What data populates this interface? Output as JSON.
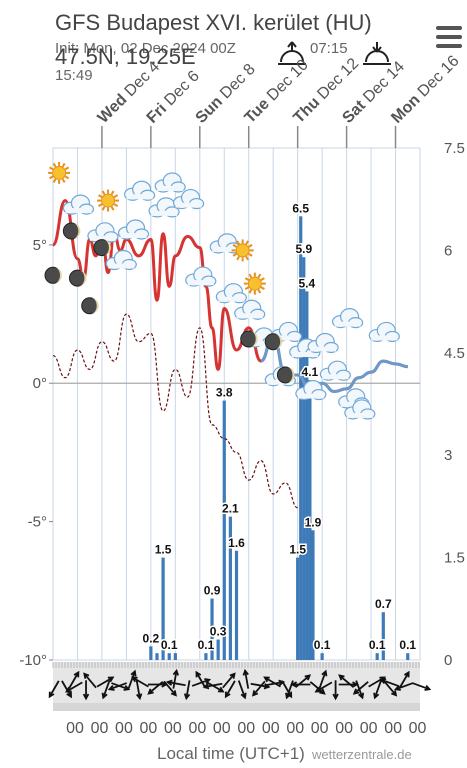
{
  "header": {
    "title": "GFS Budapest XVI. kerület (HU)",
    "coords": "47.5N, 19.25E",
    "init": "Init: Mon, 02 Dec 2024 00Z",
    "sunrise": "07:15",
    "sunset": "15:49"
  },
  "footer": {
    "xlabel": "Local time (UTC+1)",
    "credit": "wetterzentrale.de",
    "hour_label": "00"
  },
  "colors": {
    "temp": "#d63333",
    "temp_low": "#55aee6",
    "dewpoint": "#6b1010",
    "precip": "#3d7ab8",
    "grid": "#c7d6e6"
  },
  "chart_data": {
    "type": "line",
    "x_unit": "date",
    "date_ticks": [
      {
        "day": "Wed",
        "date": "Dec 4",
        "bold": "Wed",
        "rest": " Dec 4"
      },
      {
        "day": "Fri",
        "date": "Dec 6",
        "bold": "Fri",
        "rest": " Dec 6"
      },
      {
        "day": "Sun",
        "date": "Dec 8",
        "bold": "Sun",
        "rest": " Dec 8"
      },
      {
        "day": "Tue",
        "date": "Dec 10",
        "bold": "Tue",
        "rest": " Dec 10"
      },
      {
        "day": "Thu",
        "date": "Dec 12",
        "bold": "Thu",
        "rest": " Dec 12"
      },
      {
        "day": "Sat",
        "date": "Dec 14",
        "bold": "Sat",
        "rest": " Dec 14"
      },
      {
        "day": "Mon",
        "date": "Dec 16",
        "bold": "Mon",
        "rest": " Dec 16"
      }
    ],
    "y_left": {
      "range": [
        -10,
        8.5
      ],
      "ticks": [
        {
          "v": 5,
          "label": "5°"
        },
        {
          "v": 0,
          "label": "0°"
        },
        {
          "v": -5,
          "label": "-5°"
        },
        {
          "v": -10,
          "label": "-10°"
        }
      ]
    },
    "y_right": {
      "range": [
        0,
        7.5
      ],
      "ticks": [
        {
          "v": 7.5,
          "label": "7.5"
        },
        {
          "v": 6,
          "label": "6"
        },
        {
          "v": 4.5,
          "label": "4.5"
        },
        {
          "v": 3,
          "label": "3"
        },
        {
          "v": 1.5,
          "label": "1.5"
        },
        {
          "v": 0,
          "label": "0"
        }
      ]
    },
    "series": [
      {
        "key": "temperature",
        "x": [
          "2024-12-02T00",
          "2024-12-02T12",
          "2024-12-03T00",
          "2024-12-03T06",
          "2024-12-03T12",
          "2024-12-03T18",
          "2024-12-04T00",
          "2024-12-04T06",
          "2024-12-04T12",
          "2024-12-04T18",
          "2024-12-05T00",
          "2024-12-05T12",
          "2024-12-06T00",
          "2024-12-06T06",
          "2024-12-06T12",
          "2024-12-06T18",
          "2024-12-07T00",
          "2024-12-07T12",
          "2024-12-08T00",
          "2024-12-08T06",
          "2024-12-08T12",
          "2024-12-08T18",
          "2024-12-09T00",
          "2024-12-09T12",
          "2024-12-10T00",
          "2024-12-10T12",
          "2024-12-11T00",
          "2024-12-11T12",
          "2024-12-12T00",
          "2024-12-12T12",
          "2024-12-13T00",
          "2024-12-13T12",
          "2024-12-14T00",
          "2024-12-14T12",
          "2024-12-15T00",
          "2024-12-15T12",
          "2024-12-16T00",
          "2024-12-16T12"
        ],
        "y": [
          5.0,
          6.6,
          4.5,
          3.8,
          5.2,
          4.6,
          5.5,
          4.0,
          5.4,
          4.8,
          5.2,
          4.6,
          5.2,
          3.0,
          5.4,
          3.5,
          4.6,
          5.3,
          4.9,
          3.5,
          2.0,
          0.5,
          2.7,
          1.2,
          2.0,
          0.8,
          1.7,
          0.3,
          0.3,
          -0.2,
          0.0,
          -0.3,
          -0.2,
          0.2,
          0.4,
          0.8,
          0.7,
          0.6
        ]
      },
      {
        "key": "dewpoint",
        "x": [
          "2024-12-02T00",
          "2024-12-02T12",
          "2024-12-03T00",
          "2024-12-03T12",
          "2024-12-04T00",
          "2024-12-04T12",
          "2024-12-05T00",
          "2024-12-05T12",
          "2024-12-06T00",
          "2024-12-06T12",
          "2024-12-07T00",
          "2024-12-07T12",
          "2024-12-08T00",
          "2024-12-08T12",
          "2024-12-09T00",
          "2024-12-09T12",
          "2024-12-10T00",
          "2024-12-10T12",
          "2024-12-11T00",
          "2024-12-11T12",
          "2024-12-12T00"
        ],
        "y": [
          1.0,
          0.2,
          1.2,
          0.5,
          1.5,
          0.8,
          2.5,
          1.5,
          1.8,
          -1.0,
          0.5,
          -0.5,
          2.0,
          -1.5,
          -2.0,
          -2.5,
          -3.5,
          -2.8,
          -4.0,
          -3.6,
          -4.5
        ]
      },
      {
        "key": "precipitation",
        "x": [
          "2024-12-06T00",
          "2024-12-06T06",
          "2024-12-06T12",
          "2024-12-06T18",
          "2024-12-07T00",
          "2024-12-08T06",
          "2024-12-08T12",
          "2024-12-08T18",
          "2024-12-09T00",
          "2024-12-09T06",
          "2024-12-09T12",
          "2024-12-12T00",
          "2024-12-12T03",
          "2024-12-12T06",
          "2024-12-12T09",
          "2024-12-12T12",
          "2024-12-12T15",
          "2024-12-13T00",
          "2024-12-15T06",
          "2024-12-15T12",
          "2024-12-16T12"
        ],
        "y": [
          0.2,
          0.1,
          1.5,
          0.1,
          0.1,
          0.1,
          0.9,
          0.3,
          3.8,
          2.1,
          1.6,
          1.5,
          6.5,
          5.9,
          5.4,
          4.1,
          1.9,
          0.1,
          0.1,
          0.7,
          0.1
        ]
      }
    ],
    "precip_labels": [
      {
        "x": "2024-12-06T00",
        "v": "0.2"
      },
      {
        "x": "2024-12-06T12",
        "v": "1.5"
      },
      {
        "x": "2024-12-06T18",
        "v": "0.1"
      },
      {
        "x": "2024-12-08T06",
        "v": "0.1"
      },
      {
        "x": "2024-12-08T12",
        "v": "0.9"
      },
      {
        "x": "2024-12-08T18",
        "v": "0.3"
      },
      {
        "x": "2024-12-09T00",
        "v": "3.8"
      },
      {
        "x": "2024-12-09T06",
        "v": "2.1"
      },
      {
        "x": "2024-12-09T12",
        "v": "1.6"
      },
      {
        "x": "2024-12-12T00",
        "v": "1.5"
      },
      {
        "x": "2024-12-12T03",
        "v": "6.5"
      },
      {
        "x": "2024-12-12T06",
        "v": "5.9"
      },
      {
        "x": "2024-12-12T09",
        "v": "5.4"
      },
      {
        "x": "2024-12-12T12",
        "v": "4.1"
      },
      {
        "x": "2024-12-12T15",
        "v": "1.9"
      },
      {
        "x": "2024-12-13T00",
        "v": "0.1"
      },
      {
        "x": "2024-12-15T06",
        "v": "0.1"
      },
      {
        "x": "2024-12-15T12",
        "v": "0.7"
      },
      {
        "x": "2024-12-16T12",
        "v": "0.1"
      }
    ],
    "weather_icons": [
      {
        "x": "2024-12-02T06",
        "t": 7.6,
        "icon": "sun-icon"
      },
      {
        "x": "2024-12-03T00",
        "t": 6.4,
        "icon": "cloud-icon"
      },
      {
        "x": "2024-12-04T06",
        "t": 6.6,
        "icon": "sun-icon"
      },
      {
        "x": "2024-12-05T12",
        "t": 6.9,
        "icon": "cloud-icon"
      },
      {
        "x": "2024-12-06T12",
        "t": 6.3,
        "icon": "cloud-icon"
      },
      {
        "x": "2024-12-06T18",
        "t": 7.2,
        "icon": "cloud-icon"
      },
      {
        "x": "2024-12-07T12",
        "t": 6.6,
        "icon": "cloud-icon"
      },
      {
        "x": "2024-12-04T00",
        "t": 5.4,
        "icon": "cloud-icon"
      },
      {
        "x": "2024-12-04T18",
        "t": 4.4,
        "icon": "cloud-icon"
      },
      {
        "x": "2024-12-05T06",
        "t": 5.5,
        "icon": "cloud-icon"
      },
      {
        "x": "2024-12-09T00",
        "t": 5.0,
        "icon": "cloud-icon"
      },
      {
        "x": "2024-12-09T18",
        "t": 4.8,
        "icon": "sun-icon"
      },
      {
        "x": "2024-12-10T06",
        "t": 3.6,
        "icon": "sun-icon"
      },
      {
        "x": "2024-12-08T00",
        "t": 3.8,
        "icon": "cloud-icon"
      },
      {
        "x": "2024-12-09T06",
        "t": 3.2,
        "icon": "cloud-icon"
      },
      {
        "x": "2024-12-10T00",
        "t": 2.6,
        "icon": "cloud-icon"
      },
      {
        "x": "2024-12-10T12",
        "t": 1.6,
        "icon": "cloud-icon"
      },
      {
        "x": "2024-12-11T12",
        "t": 1.8,
        "icon": "cloud-icon"
      },
      {
        "x": "2024-12-12T06",
        "t": 1.2,
        "icon": "cloud-icon"
      },
      {
        "x": "2024-12-13T00",
        "t": 1.4,
        "icon": "cloud-icon"
      },
      {
        "x": "2024-12-14T00",
        "t": 2.3,
        "icon": "cloud-icon"
      },
      {
        "x": "2024-12-15T12",
        "t": 1.8,
        "icon": "cloud-icon"
      },
      {
        "x": "2024-12-11T06",
        "t": 0.2,
        "icon": "cloud-icon"
      },
      {
        "x": "2024-12-12T12",
        "t": -0.3,
        "icon": "cloud-icon"
      },
      {
        "x": "2024-12-13T12",
        "t": 0.4,
        "icon": "cloud-icon"
      },
      {
        "x": "2024-12-14T06",
        "t": -0.6,
        "icon": "cloud-icon"
      },
      {
        "x": "2024-12-14T12",
        "t": -1.0,
        "icon": "cloud-icon"
      },
      {
        "x": "2024-12-02T00",
        "t": 3.9,
        "icon": "moon-icon"
      },
      {
        "x": "2024-12-02T18",
        "t": 5.5,
        "icon": "moon-icon"
      },
      {
        "x": "2024-12-03T00",
        "t": 3.8,
        "icon": "moon-icon"
      },
      {
        "x": "2024-12-03T12",
        "t": 2.8,
        "icon": "moon-icon"
      },
      {
        "x": "2024-12-04T00",
        "t": 4.9,
        "icon": "moon-icon"
      },
      {
        "x": "2024-12-10T00",
        "t": 1.6,
        "icon": "moon-icon"
      },
      {
        "x": "2024-12-11T00",
        "t": 1.5,
        "icon": "moon-icon"
      },
      {
        "x": "2024-12-11T12",
        "t": 0.3,
        "icon": "moon-icon"
      }
    ],
    "wind_dirs": [
      210,
      150,
      30,
      240,
      180,
      320,
      60,
      200,
      110,
      250,
      20,
      170,
      300,
      90,
      230,
      140,
      10,
      280,
      190,
      70,
      330,
      120,
      260,
      40,
      210,
      160,
      350,
      100,
      220,
      80,
      300,
      150,
      200,
      50,
      270,
      130,
      20,
      240,
      180,
      90,
      310,
      160,
      230,
      60,
      200,
      140,
      290,
      30,
      250,
      110
    ]
  }
}
